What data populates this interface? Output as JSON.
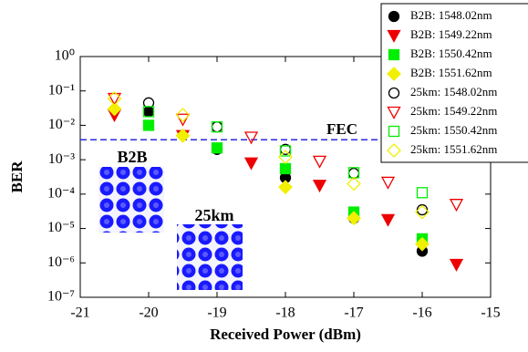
{
  "chart_data": {
    "type": "scatter",
    "xlabel": "Received Power (dBm)",
    "ylabel": "BER",
    "xlim": [
      -21,
      -15
    ],
    "xticks": [
      -21,
      -20,
      -19,
      -18,
      -17,
      -16,
      -15
    ],
    "ylim": [
      1e-07,
      1
    ],
    "yscale": "log",
    "yticks": [
      {
        "value": 1e-07,
        "label": "10⁻⁷"
      },
      {
        "value": 1e-06,
        "label": "10⁻⁶"
      },
      {
        "value": 1e-05,
        "label": "10⁻⁵"
      },
      {
        "value": 0.0001,
        "label": "10⁻⁴"
      },
      {
        "value": 0.001,
        "label": "10⁻³"
      },
      {
        "value": 0.01,
        "label": "10⁻²"
      },
      {
        "value": 0.1,
        "label": "10⁻¹"
      },
      {
        "value": 1,
        "label": "10⁰"
      }
    ],
    "legend": "top-right",
    "series": [
      {
        "name": "B2B: 1548.02nm",
        "color": "#000000",
        "marker": "circle",
        "filled": true,
        "x": [
          -20,
          -19,
          -18,
          -17,
          -16
        ],
        "values": [
          0.025,
          0.002,
          0.0003,
          2e-05,
          2.2e-06
        ]
      },
      {
        "name": "B2B: 1549.22nm",
        "color": "#ee0000",
        "marker": "triangle",
        "filled": true,
        "x": [
          -20.5,
          -19.5,
          -18.5,
          -17.5,
          -16.5,
          -15.5
        ],
        "values": [
          0.02,
          0.005,
          0.0008,
          0.00018,
          1.8e-05,
          9e-07
        ]
      },
      {
        "name": "B2B: 1550.42nm",
        "color": "#00ee00",
        "marker": "square",
        "filled": true,
        "x": [
          -20,
          -19,
          -18,
          -17,
          -16
        ],
        "values": [
          0.01,
          0.0022,
          0.00055,
          3e-05,
          5e-06
        ]
      },
      {
        "name": "B2B: 1551.62nm",
        "color": "#f0f000",
        "marker": "diamond",
        "filled": true,
        "x": [
          -20.5,
          -19.5,
          -18,
          -17,
          -16
        ],
        "values": [
          0.03,
          0.005,
          0.00016,
          2e-05,
          3.5e-06
        ]
      },
      {
        "name": "25km: 1548.02nm",
        "color": "#000000",
        "marker": "circle",
        "filled": false,
        "x": [
          -20,
          -19,
          -18,
          -17,
          -16
        ],
        "values": [
          0.045,
          0.009,
          0.002,
          0.0004,
          3.5e-05
        ]
      },
      {
        "name": "25km: 1549.22nm",
        "color": "#ee0000",
        "marker": "triangle",
        "filled": false,
        "x": [
          -20.5,
          -19.5,
          -18.5,
          -17.5,
          -16.5,
          -15.5
        ],
        "values": [
          0.06,
          0.015,
          0.0045,
          0.0009,
          0.00022,
          5e-05
        ]
      },
      {
        "name": "25km: 1550.42nm",
        "color": "#00ee00",
        "marker": "square",
        "filled": false,
        "x": [
          -20,
          -19,
          -18,
          -17,
          -16
        ],
        "values": [
          0.025,
          0.009,
          0.0018,
          0.00042,
          0.00011
        ]
      },
      {
        "name": "25km: 1551.62nm",
        "color": "#f0f000",
        "marker": "diamond",
        "filled": false,
        "x": [
          -20.5,
          -19.5,
          -18,
          -17,
          -16
        ],
        "values": [
          0.06,
          0.02,
          0.0012,
          0.0002,
          3e-05
        ]
      }
    ],
    "threshold": {
      "value": 0.0038,
      "label": "FEC",
      "color": "#2a2ae0"
    },
    "insets": [
      {
        "label": "B2B"
      },
      {
        "label": "25km"
      }
    ]
  }
}
